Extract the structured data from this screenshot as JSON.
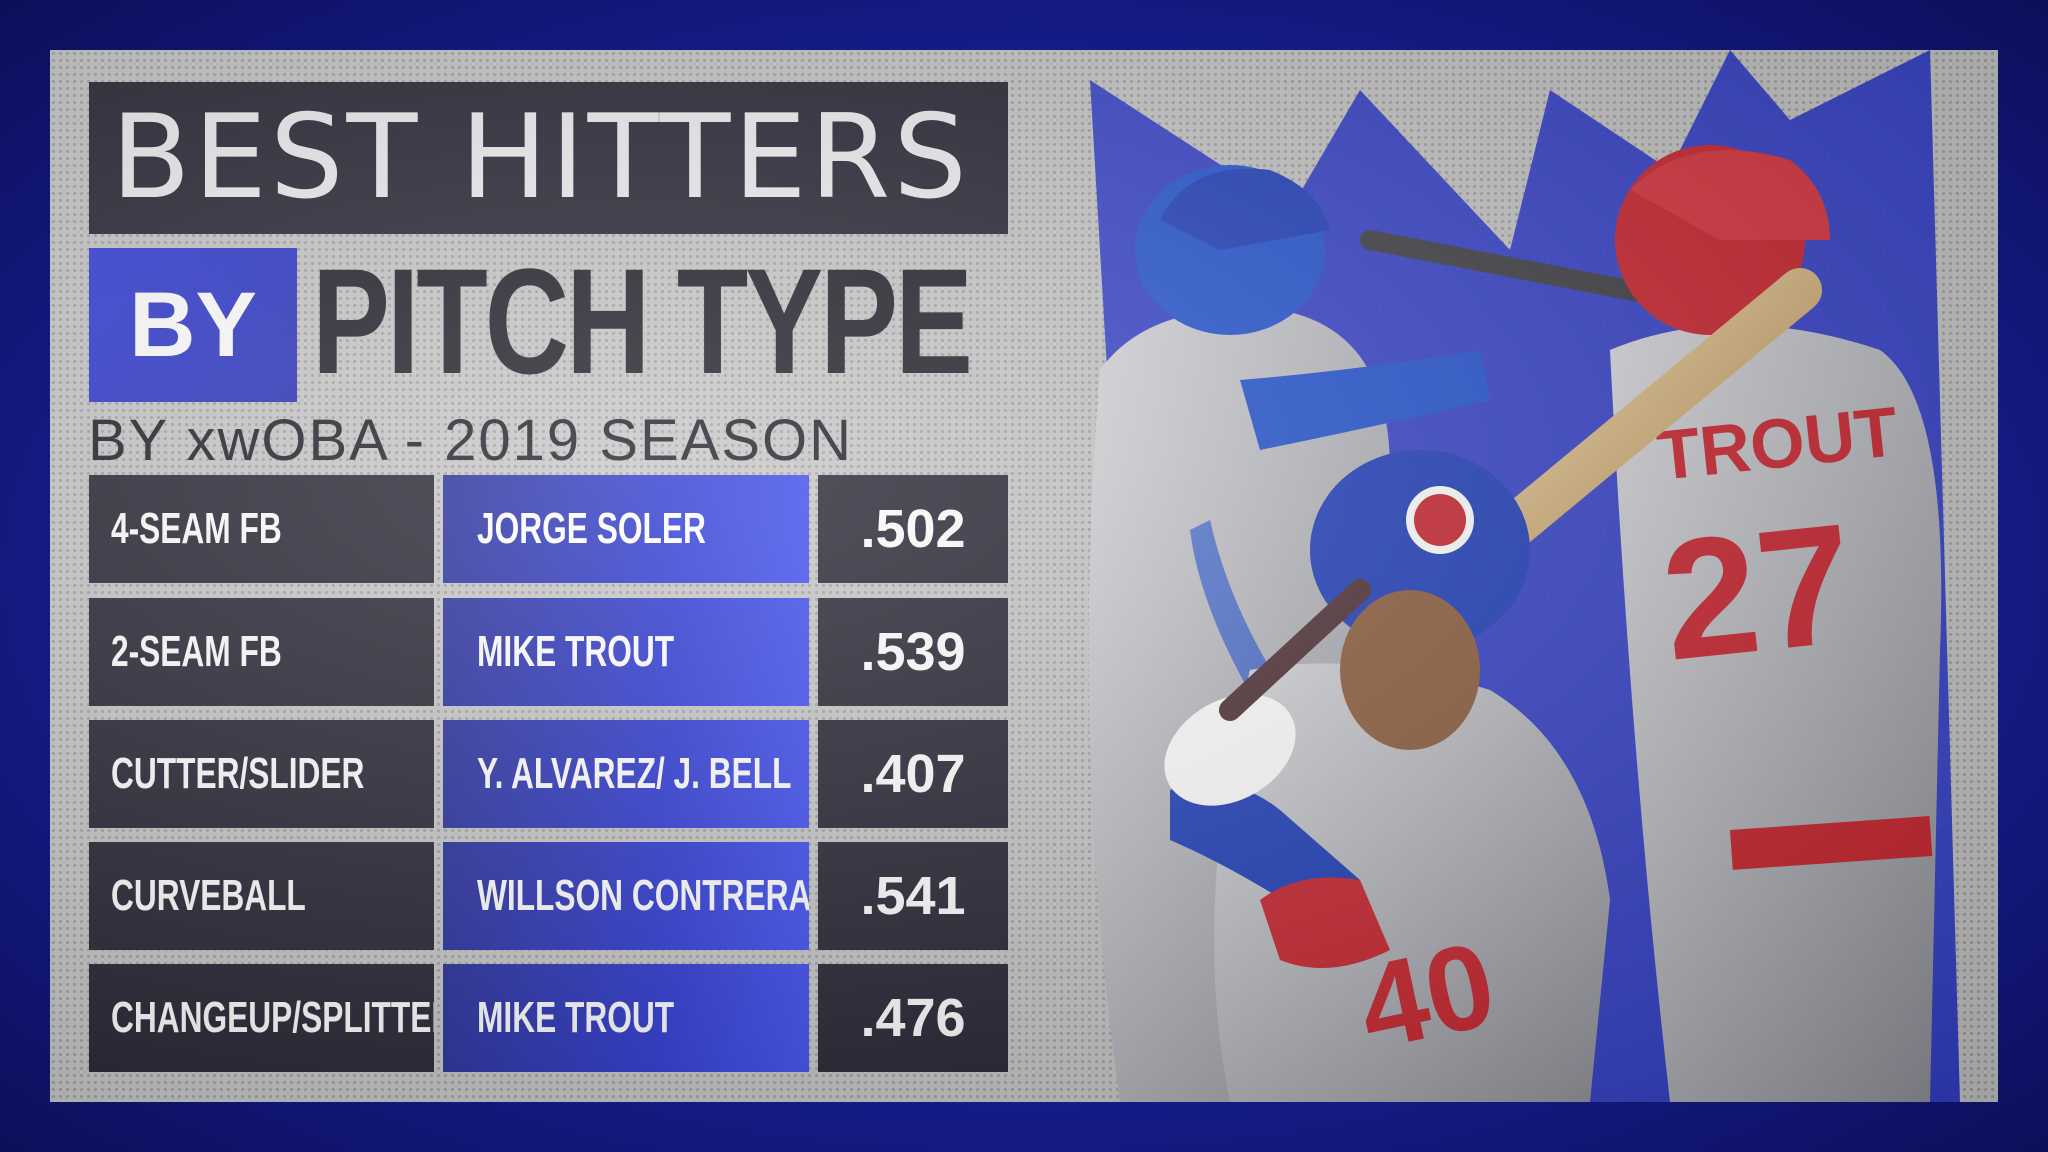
{
  "title": {
    "line1": "BEST HITTERS",
    "by": "BY",
    "line2": "PITCH TYPE",
    "subtitle": "BY xwOBA - 2019 SEASON"
  },
  "rows": [
    {
      "pitch": "4-SEAM FB",
      "player": "JORGE SOLER",
      "xwoba": ".502"
    },
    {
      "pitch": "2-SEAM FB",
      "player": "MIKE TROUT",
      "xwoba": ".539"
    },
    {
      "pitch": "CUTTER/SLIDER",
      "player": "Y. ALVAREZ/ J. BELL",
      "xwoba": ".407"
    },
    {
      "pitch": "CURVEBALL",
      "player": "WILLSON CONTRERAS",
      "xwoba": ".541"
    },
    {
      "pitch": "CHANGEUP/SPLITTER",
      "player": "MIKE TROUT",
      "xwoba": ".476"
    }
  ],
  "jerseys": {
    "trout_name": "TROUT",
    "trout_number": "27",
    "contreras_number": "40"
  },
  "colors": {
    "accent_blue": "#2430d0",
    "dark_cell": "#1b1c2a",
    "angels_red": "#c8202a",
    "royals_blue": "#1f4fd0",
    "cubs_blue": "#1a3ab8"
  }
}
